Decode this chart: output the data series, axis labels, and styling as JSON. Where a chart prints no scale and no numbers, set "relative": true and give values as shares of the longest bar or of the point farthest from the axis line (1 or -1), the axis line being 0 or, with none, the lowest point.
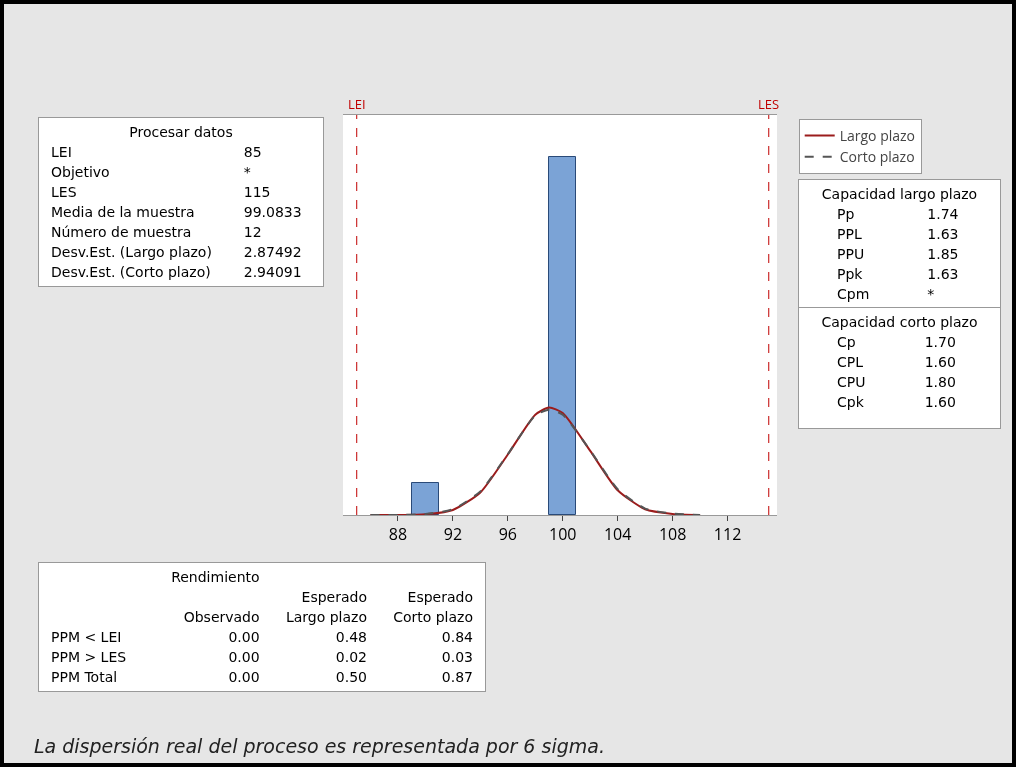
{
  "chart_data": {
    "type": "histogram",
    "relative": true,
    "bins": [
      89,
      91,
      93,
      95,
      97,
      99,
      101
    ],
    "values": [
      0.09,
      0,
      0,
      0,
      0,
      1
    ],
    "color": "#7ba3d6",
    "series": [
      {
        "type": "line",
        "name": "Largo plazo",
        "color": "#9b1c1c",
        "line_style": "solid",
        "x": [
          86,
          88,
          90,
          92,
          94,
          96,
          98,
          99,
          100,
          102,
          104,
          106,
          108,
          110
        ],
        "values": [
          0,
          0,
          0.002,
          0.014,
          0.063,
          0.169,
          0.28,
          0.3,
          0.285,
          0.179,
          0.069,
          0.016,
          0.003,
          0
        ]
      },
      {
        "type": "line",
        "name": "Corto plazo",
        "color": "#555555",
        "line_style": "dashed",
        "x": [
          86,
          88,
          90,
          92,
          94,
          96,
          98,
          99,
          100,
          102,
          104,
          106,
          108,
          110
        ],
        "values": [
          0,
          0,
          0.003,
          0.016,
          0.066,
          0.17,
          0.278,
          0.294,
          0.28,
          0.18,
          0.072,
          0.018,
          0.004,
          0
        ]
      }
    ],
    "xlim": [
      84,
      115.6
    ],
    "xticks": [
      88,
      92,
      96,
      100,
      104,
      108,
      112
    ],
    "ref_lines": [
      {
        "axis": "x",
        "value": 85,
        "label": "LEI",
        "color": "#c00000",
        "line_style": "dashed"
      },
      {
        "axis": "x",
        "value": 115,
        "label": "LES",
        "color": "#c00000",
        "line_style": "dashed"
      }
    ],
    "legend": "top right",
    "grid": false,
    "annotations": [
      "Procesar datos\nLEI\t85\nObjetivo\t*\nLES\t115\nMedia de la muestra\t99.0833\nNúmero de muestra\t12\nDesv.Est. (Largo plazo)\t2.87492\nDesv.Est. (Corto plazo)\t2.94091",
      "Capacidad largo plazo\nPp\t1.74\nPPL\t1.63\nPPU\t1.85\nPpk\t1.63\nCpm\t*",
      "Capacidad corto plazo\nCp\t1.70\nCPL\t1.60\nCPU\t1.80\nCpk\t1.60",
      "\tRendimiento\n\t\tEsperado\tEsperado\n\tObservado\tLargo plazo\tCorto plazo\nPPM < LEI\t0.00\t0.48\t0.84\nPPM > LES\t0.00\t0.02\t0.03\nPPM Total\t0.00\t0.50\t0.87",
      "La dispersión real del proceso es representada por 6 sigma."
    ]
  }
}
